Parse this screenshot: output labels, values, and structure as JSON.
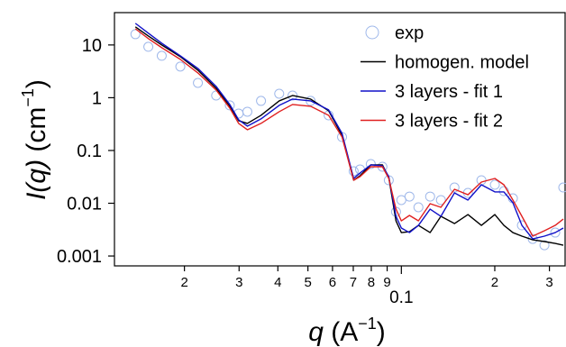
{
  "chart_data": {
    "type": "line",
    "xscale": "log",
    "yscale": "log",
    "xlabel": [
      "q",
      " (A",
      "−1",
      ")"
    ],
    "ylabel": [
      "I(q)",
      " (cm",
      "−1",
      ")"
    ],
    "xlim": [
      0.0119,
      0.337
    ],
    "ylim": [
      0.00065,
      41
    ],
    "xticks": [
      {
        "value": 0.02,
        "label": "2"
      },
      {
        "value": 0.03,
        "label": "3"
      },
      {
        "value": 0.04,
        "label": "4"
      },
      {
        "value": 0.05,
        "label": "5"
      },
      {
        "value": 0.06,
        "label": "6"
      },
      {
        "value": 0.07,
        "label": "7"
      },
      {
        "value": 0.08,
        "label": "8"
      },
      {
        "value": 0.09,
        "label": "9"
      },
      0.1,
      {
        "value": 0.2,
        "label": "2"
      },
      {
        "value": 0.3,
        "label": "3"
      }
    ],
    "yticks": [
      10,
      1,
      0.1,
      0.01,
      0.001
    ],
    "legend": "top-right",
    "x": [
      0.0139,
      0.0153,
      0.0169,
      0.0194,
      0.0221,
      0.0253,
      0.028,
      0.0299,
      0.0319,
      0.0353,
      0.0404,
      0.0446,
      0.051,
      0.0583,
      0.0644,
      0.0702,
      0.0736,
      0.0797,
      0.0869,
      0.0911,
      0.0961,
      0.1,
      0.1062,
      0.1135,
      0.1238,
      0.1341,
      0.1483,
      0.1639,
      0.1811,
      0.2001,
      0.214,
      0.2288,
      0.2446,
      0.265,
      0.2891,
      0.3132,
      0.3325
    ],
    "series": [
      {
        "name": "exp",
        "style": "markers",
        "color": "#9fb8ea",
        "values": [
          16.0,
          9.24,
          6.23,
          3.89,
          1.91,
          1.1,
          0.716,
          0.502,
          0.543,
          0.871,
          1.19,
          1.1,
          0.871,
          0.464,
          0.18,
          0.0404,
          0.0438,
          0.0554,
          0.0492,
          0.0273,
          0.00688,
          0.0115,
          0.0134,
          0.00838,
          0.0134,
          0.0115,
          0.0199,
          0.0157,
          0.0273,
          0.0224,
          0.017,
          0.0124,
          0.00381,
          0.00211,
          0.0016,
          0.00278,
          0.0199
        ]
      },
      {
        "name": "homogen. model",
        "style": "line",
        "color": "#000000",
        "values": [
          22.0,
          14.8,
          10,
          6.0,
          3.32,
          1.51,
          0.688,
          0.367,
          0.326,
          0.464,
          0.871,
          1.1,
          0.943,
          0.565,
          0.195,
          0.0273,
          0.0332,
          0.0533,
          0.0533,
          0.0307,
          0.00464,
          0.00278,
          0.00289,
          0.00381,
          0.00278,
          0.00565,
          0.00412,
          0.00611,
          0.00381,
          0.00611,
          0.00381,
          0.00278,
          0.00238,
          0.00203,
          0.00188,
          0.00173,
          0.0016
        ]
      },
      {
        "name": "3 layers - fit 1",
        "style": "line",
        "color": "#1010c8",
        "values": [
          25.7,
          16.7,
          10.8,
          6.23,
          3.59,
          1.64,
          0.744,
          0.381,
          0.289,
          0.397,
          0.716,
          0.943,
          0.871,
          0.588,
          0.211,
          0.0295,
          0.0374,
          0.0533,
          0.0512,
          0.0319,
          0.00565,
          0.00339,
          0.00278,
          0.00381,
          0.00774,
          0.00565,
          0.0157,
          0.0115,
          0.0224,
          0.0164,
          0.0164,
          0.0102,
          0.00381,
          0.00211,
          0.00238,
          0.00278,
          0.00339
        ]
      },
      {
        "name": "3 layers - fit 2",
        "style": "line",
        "color": "#e02020",
        "values": [
          20.3,
          13.2,
          8.89,
          5.33,
          2.95,
          1.4,
          0.636,
          0.326,
          0.247,
          0.326,
          0.543,
          0.744,
          0.688,
          0.464,
          0.18,
          0.0273,
          0.0319,
          0.0492,
          0.0492,
          0.0295,
          0.00774,
          0.00464,
          0.00588,
          0.00464,
          0.0098,
          0.00838,
          0.0184,
          0.0145,
          0.0252,
          0.0295,
          0.0224,
          0.0115,
          0.00565,
          0.00238,
          0.00301,
          0.00381,
          0.00502
        ]
      }
    ]
  }
}
